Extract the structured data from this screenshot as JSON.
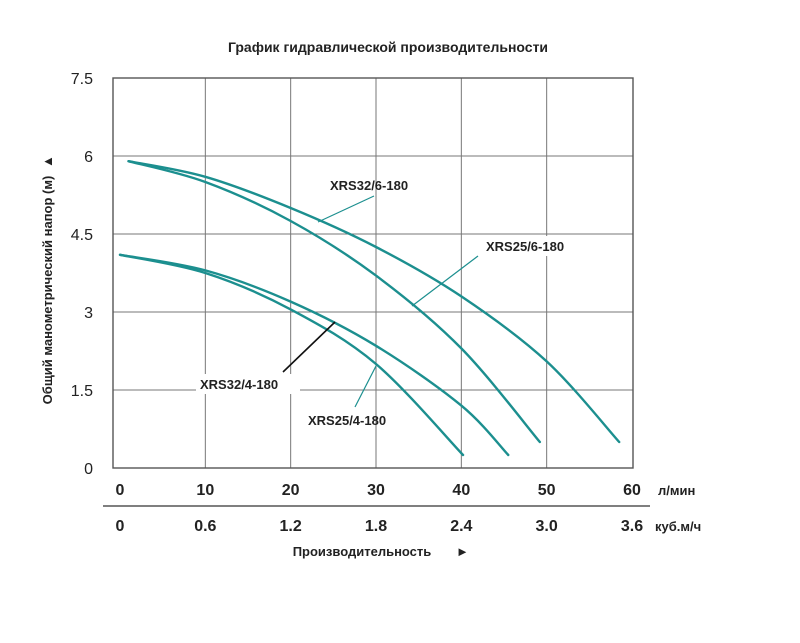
{
  "colors": {
    "curve": "#1c8f8f",
    "grid": "#777777",
    "text": "#222222"
  },
  "chart_data": {
    "type": "line",
    "title": "График гидравлической производительности",
    "ylabel": "Общий манометрический напор (м)",
    "ylabel_arrow": "▲",
    "xlabel": "Производительность",
    "xlabel_arrow": "►",
    "ylim": [
      0,
      7.5
    ],
    "xlim": [
      0,
      60
    ],
    "grid": true,
    "y_ticks": [
      {
        "v": 0,
        "label": "0"
      },
      {
        "v": 1.5,
        "label": "1.5"
      },
      {
        "v": 3,
        "label": "3"
      },
      {
        "v": 4.5,
        "label": "4.5"
      },
      {
        "v": 6,
        "label": "6"
      },
      {
        "v": 7.5,
        "label": "7.5"
      }
    ],
    "x_ticks": [
      {
        "v": 0,
        "label": "0"
      },
      {
        "v": 10,
        "label": "10"
      },
      {
        "v": 20,
        "label": "20"
      },
      {
        "v": 30,
        "label": "30"
      },
      {
        "v": 40,
        "label": "40"
      },
      {
        "v": 50,
        "label": "50"
      },
      {
        "v": 60,
        "label": "60"
      }
    ],
    "x_unit": "л/мин",
    "x2_ticks": [
      {
        "v": 0,
        "label": "0"
      },
      {
        "v": 10,
        "label": "0.6"
      },
      {
        "v": 20,
        "label": "1.2"
      },
      {
        "v": 30,
        "label": "1.8"
      },
      {
        "v": 40,
        "label": "2.4"
      },
      {
        "v": 50,
        "label": "3.0"
      },
      {
        "v": 60,
        "label": "3.6"
      }
    ],
    "x2_unit": "куб.м/ч",
    "series": [
      {
        "name": "XRS32/6-180",
        "x": [
          1,
          10,
          20,
          30,
          40,
          50,
          58.5
        ],
        "y": [
          5.9,
          5.6,
          5.0,
          4.25,
          3.3,
          2.05,
          0.5
        ]
      },
      {
        "name": "XRS25/6-180",
        "x": [
          1,
          10,
          20,
          30,
          40,
          49.2
        ],
        "y": [
          5.9,
          5.5,
          4.75,
          3.7,
          2.3,
          0.5
        ]
      },
      {
        "name": "XRS32/4-180",
        "x": [
          0,
          10,
          20,
          30,
          40,
          45.5
        ],
        "y": [
          4.1,
          3.8,
          3.2,
          2.35,
          1.2,
          0.25
        ]
      },
      {
        "name": "XRS25/4-180",
        "x": [
          0,
          10,
          20,
          30,
          40.2
        ],
        "y": [
          4.1,
          3.75,
          3.05,
          2.0,
          0.25
        ]
      }
    ],
    "annotations": [
      {
        "series": "XRS32/6-180",
        "text": "XRS32/6-180"
      },
      {
        "series": "XRS25/6-180",
        "text": "XRS25/6-180"
      },
      {
        "series": "XRS32/4-180",
        "text": "XRS32/4-180"
      },
      {
        "series": "XRS25/4-180",
        "text": "XRS25/4-180"
      }
    ]
  }
}
